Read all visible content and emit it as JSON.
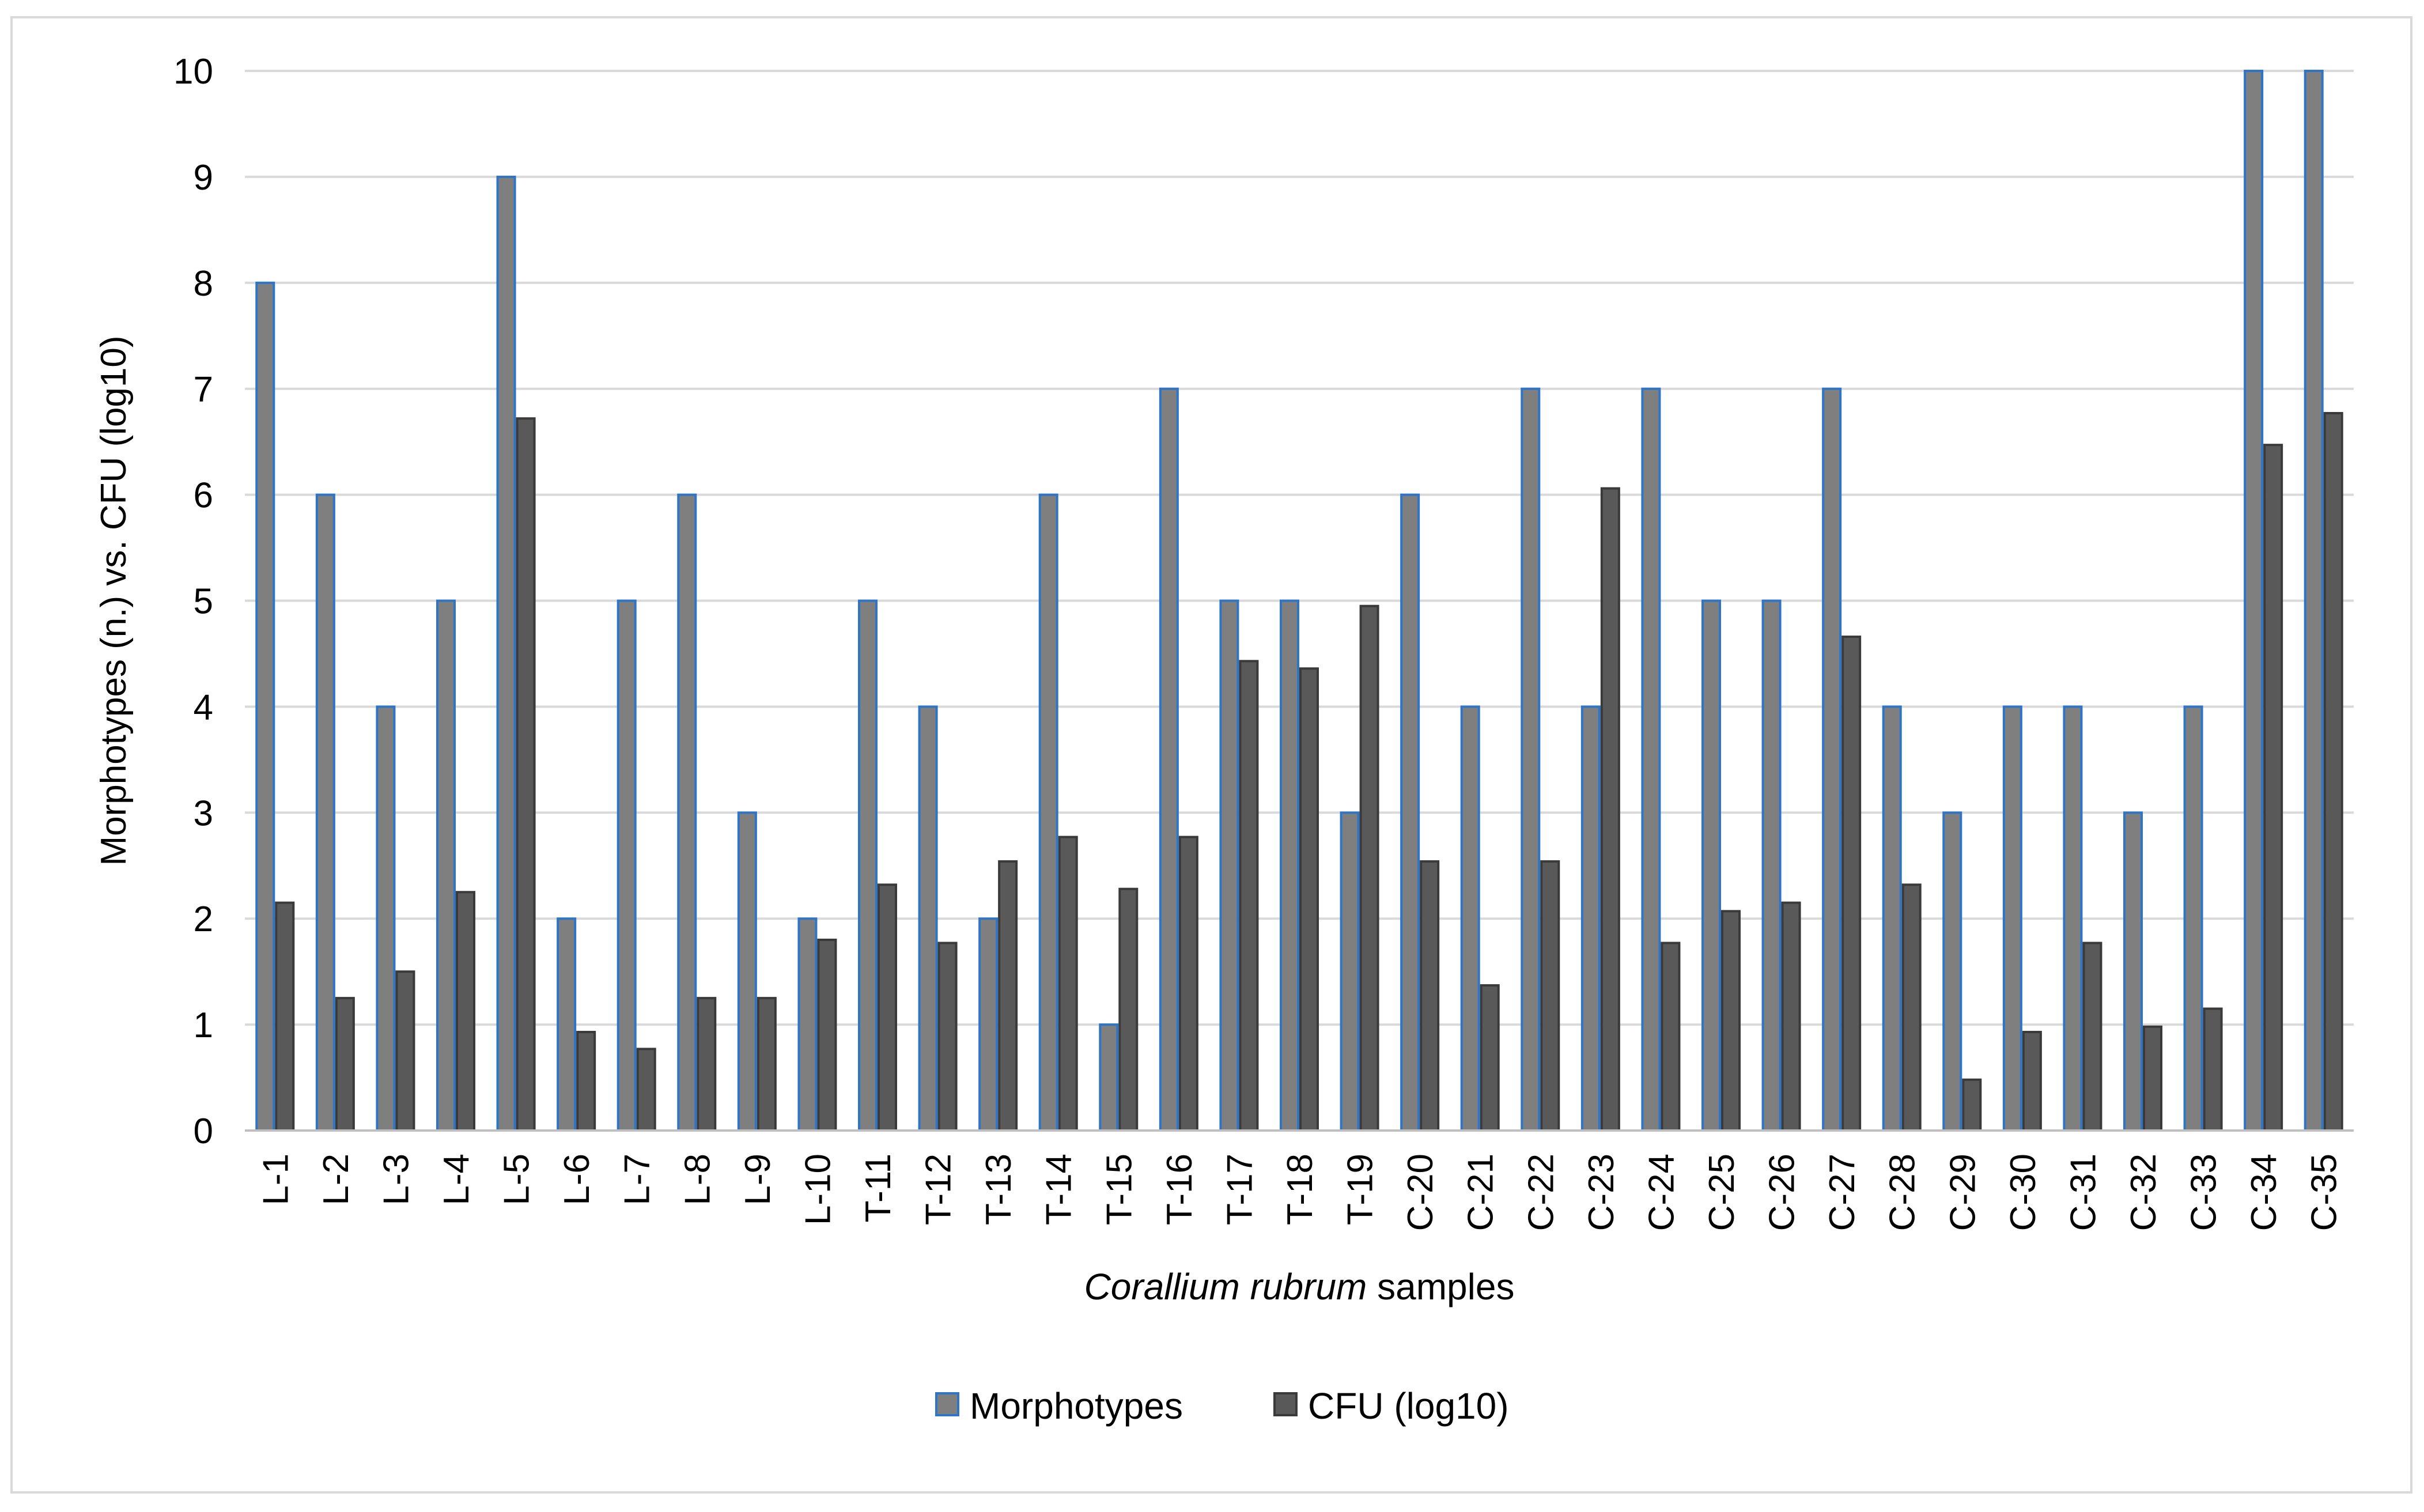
{
  "chart_data": {
    "type": "bar",
    "title": "",
    "xlabel_italic": "Corallium rubrum",
    "xlabel_rest": " samples",
    "ylabel": "Morphotypes (n.) vs. CFU (log10)",
    "ylim": [
      0,
      10
    ],
    "yticks": [
      "0",
      "1",
      "2",
      "3",
      "4",
      "5",
      "6",
      "7",
      "8",
      "9",
      "10"
    ],
    "grid": true,
    "legend_position": "bottom",
    "categories": [
      "L-1",
      "L-2",
      "L-3",
      "L-4",
      "L-5",
      "L-6",
      "L-7",
      "L-8",
      "L-9",
      "L-10",
      "T-11",
      "T-12",
      "T-13",
      "T-14",
      "T-15",
      "T-16",
      "T-17",
      "T-18",
      "T-19",
      "C-20",
      "C-21",
      "C-22",
      "C-23",
      "C-24",
      "C-25",
      "C-26",
      "C-27",
      "C-28",
      "C-29",
      "C-30",
      "C-31",
      "C-32",
      "C-33",
      "C-34",
      "C-35"
    ],
    "series": [
      {
        "name": "Morphotypes",
        "fill": "#7f7f7f",
        "stroke": "#2e75c7",
        "values": [
          8,
          6,
          4,
          5,
          9,
          2,
          5,
          6,
          3,
          2,
          5,
          4,
          2,
          6,
          1,
          7,
          5,
          5,
          3,
          6,
          4,
          7,
          4,
          7,
          5,
          5,
          7,
          4,
          3,
          4,
          4,
          3,
          4,
          10,
          10
        ]
      },
      {
        "name": "CFU (log10)",
        "fill": "#595959",
        "stroke": "#3a3a3a",
        "values": [
          2.15,
          1.25,
          1.5,
          2.25,
          6.72,
          0.93,
          0.77,
          1.25,
          1.25,
          1.8,
          2.32,
          1.77,
          2.54,
          2.77,
          2.28,
          2.77,
          4.43,
          4.36,
          4.95,
          2.54,
          1.37,
          2.54,
          6.06,
          1.77,
          2.07,
          2.15,
          4.66,
          2.32,
          0.48,
          0.93,
          1.77,
          0.98,
          1.15,
          6.47,
          6.77
        ]
      }
    ]
  }
}
